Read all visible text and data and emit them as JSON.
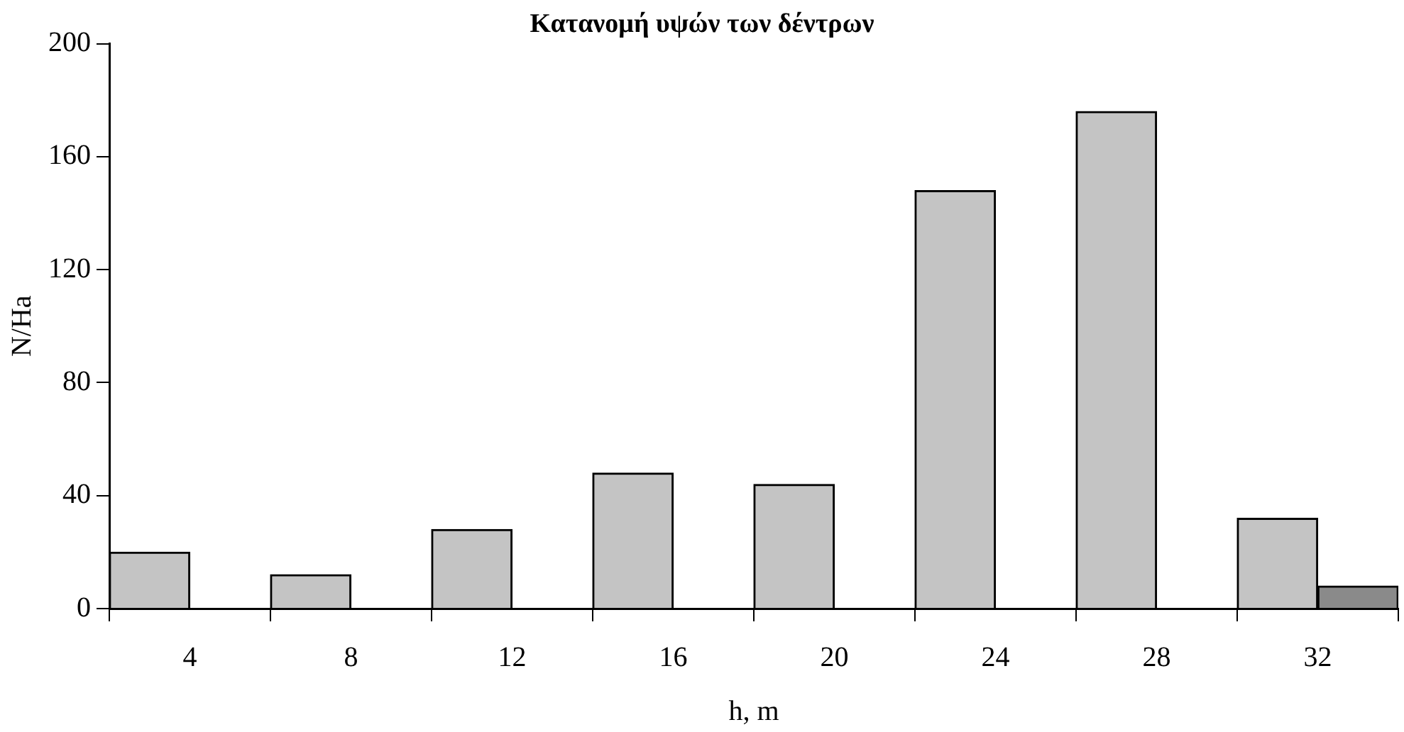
{
  "chart_data": {
    "type": "bar",
    "title": "Κατανομή υψών των δέντρων",
    "xlabel": "h, m",
    "ylabel": "N/Ha",
    "categories": [
      "4",
      "8",
      "12",
      "16",
      "20",
      "24",
      "28",
      "32"
    ],
    "series": [
      {
        "color": "#c4c4c4",
        "values": [
          20,
          12,
          28,
          48,
          44,
          148,
          176,
          32
        ]
      },
      {
        "color": "#8a8a8a",
        "values": [
          null,
          null,
          null,
          null,
          null,
          null,
          null,
          8
        ]
      }
    ],
    "ylim": [
      0,
      200
    ],
    "yticks": [
      0,
      40,
      80,
      120,
      160,
      200
    ],
    "grid": false,
    "legend": false
  }
}
